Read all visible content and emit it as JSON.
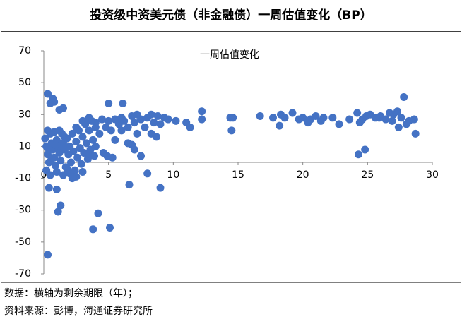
{
  "header": {
    "title": "投资级中资美元债（非金融债）一周估值变化（BP）"
  },
  "footer": {
    "notes": [
      "数据：横轴为剩余期限（年）；",
      "资料来源：彭博，海通证券研究所"
    ]
  },
  "chart_data": {
    "type": "scatter",
    "title": "一周估值变化",
    "color": "#4472c4",
    "xlim": [
      0,
      30
    ],
    "ylim": [
      -70,
      70
    ],
    "xticks": [
      0,
      5,
      10,
      15,
      20,
      25,
      30
    ],
    "yticks": [
      70,
      50,
      30,
      10,
      -10,
      -30,
      -50,
      -70
    ],
    "x": [
      0.3,
      0.5,
      0.7,
      0.4,
      0.3,
      1.0,
      1.1,
      1.3,
      3.8,
      4.2,
      5.1,
      6.6,
      8.0,
      9.0,
      7.5,
      5.0,
      6.1,
      1.5,
      1.2,
      0.8,
      0.1,
      0.2,
      0.3,
      0.4,
      0.5,
      0.6,
      0.7,
      0.8,
      0.9,
      1.0,
      1.1,
      1.2,
      1.3,
      1.4,
      1.5,
      1.6,
      1.7,
      1.8,
      1.9,
      2.0,
      2.1,
      2.2,
      2.3,
      2.4,
      2.5,
      2.6,
      2.7,
      2.8,
      2.9,
      3.0,
      3.1,
      3.2,
      3.3,
      3.4,
      3.5,
      3.6,
      3.7,
      3.8,
      3.9,
      4.0,
      0.2,
      0.5,
      1.0,
      1.5,
      2.0,
      2.5,
      3.0,
      0.3,
      0.8,
      1.2,
      0.6,
      1.8,
      2.2,
      1.6,
      0.9,
      0.4,
      2.5,
      3.0,
      3.5,
      4.0,
      4.3,
      4.5,
      4.8,
      5.0,
      5.2,
      5.5,
      5.8,
      6.0,
      6.2,
      6.5,
      6.8,
      7.0,
      7.2,
      7.5,
      7.8,
      8.0,
      8.3,
      8.5,
      8.8,
      9.0,
      9.3,
      9.6,
      10.2,
      11.0,
      12.2,
      12.2,
      11.3,
      6.5,
      6.8,
      7.0,
      4.6,
      4.9,
      5.3,
      4.0,
      3.5,
      8.3,
      8.7,
      5.5,
      6.0,
      7.2,
      14.4,
      14.6,
      14.5,
      16.7,
      17.7,
      18.2,
      18.3,
      18.6,
      19.2,
      19.7,
      20.0,
      20.4,
      20.6,
      21.0,
      21.4,
      21.6,
      22.3,
      22.8,
      23.6,
      24.2,
      24.6,
      24.9,
      25.2,
      25.6,
      26.0,
      26.4,
      26.7,
      27.0,
      27.3,
      27.4,
      27.6,
      27.8,
      28.0,
      28.2,
      28.6,
      28.7,
      24.3,
      24.8,
      24.4,
      25.9,
      26.9
    ],
    "values": [
      43,
      37,
      40,
      -16,
      -58,
      -17,
      -31,
      -27,
      -42,
      -32,
      -41,
      -14,
      -7,
      -16,
      4,
      37,
      37,
      34,
      33,
      38,
      15,
      10,
      5,
      0,
      18,
      12,
      8,
      3,
      -2,
      14,
      10,
      6,
      1,
      18,
      12,
      8,
      -3,
      15,
      5,
      10,
      0,
      18,
      7,
      -5,
      13,
      3,
      20,
      9,
      -1,
      16,
      6,
      24,
      12,
      2,
      20,
      8,
      26,
      14,
      4,
      22,
      -5,
      -8,
      -6,
      -8,
      -7,
      -9,
      -6,
      20,
      19,
      20,
      2,
      -4,
      -10,
      16,
      11,
      8,
      22,
      26,
      28,
      25,
      18,
      27,
      22,
      26,
      20,
      27,
      24,
      28,
      26,
      22,
      29,
      25,
      30,
      27,
      22,
      28,
      30,
      25,
      29,
      24,
      28,
      27,
      26,
      25,
      32,
      27,
      22,
      12,
      11,
      8,
      6,
      4,
      3,
      10,
      4,
      18,
      16,
      14,
      20,
      18,
      28,
      28,
      20,
      29,
      28,
      23,
      30,
      28,
      31,
      27,
      28,
      25,
      27,
      29,
      26,
      28,
      28,
      24,
      27,
      31,
      27,
      29,
      30,
      28,
      29,
      27,
      31,
      30,
      32,
      22,
      28,
      41,
      24,
      26,
      27,
      18,
      5,
      8,
      25,
      28,
      26
    ]
  }
}
